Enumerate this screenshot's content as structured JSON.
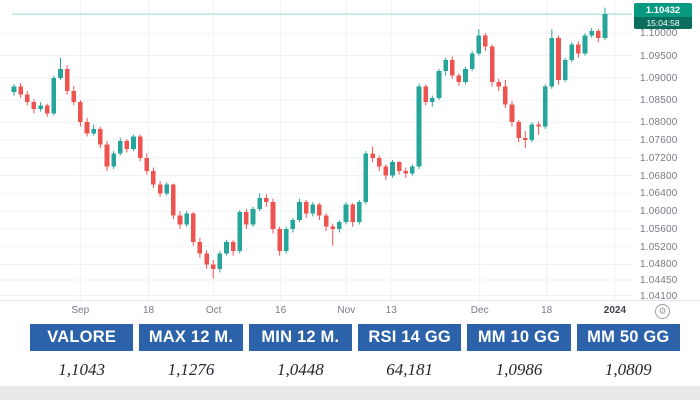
{
  "chart_data": {
    "type": "candlestick",
    "last_price_label": "1.10432",
    "countdown": "15:04:58",
    "price_scale": {
      "top": 1.1075,
      "bottom": 1.04
    },
    "y_axis_labels": [
      "1.10000",
      "1.09500",
      "1.09000",
      "1.08500",
      "1.08000",
      "1.07600",
      "1.07200",
      "1.06800",
      "1.06400",
      "1.06000",
      "1.05600",
      "1.05200",
      "1.04800",
      "1.04450",
      "1.04100"
    ],
    "x_axis_labels": [
      {
        "label": "Sep",
        "pos_pct": 12.7,
        "year": false
      },
      {
        "label": "18",
        "pos_pct": 23.5,
        "year": false
      },
      {
        "label": "Oct",
        "pos_pct": 33.8,
        "year": false
      },
      {
        "label": "16",
        "pos_pct": 44.4,
        "year": false
      },
      {
        "label": "Nov",
        "pos_pct": 54.8,
        "year": false
      },
      {
        "label": "13",
        "pos_pct": 61.9,
        "year": false
      },
      {
        "label": "Dec",
        "pos_pct": 75.9,
        "year": false
      },
      {
        "label": "18",
        "pos_pct": 86.5,
        "year": false
      },
      {
        "label": "2024",
        "pos_pct": 97.3,
        "year": true
      }
    ],
    "colors": {
      "up": "#26a69a",
      "down": "#ef5350",
      "badge": "#089981",
      "badge_dark": "#0a6e5f",
      "grid": "#f0f2f6",
      "price_line": "#26a69a",
      "axis_text": "#787b86"
    },
    "candles": [
      [
        1.0868,
        1.0886,
        1.086,
        1.088
      ],
      [
        1.088,
        1.0888,
        1.0855,
        1.0862
      ],
      [
        1.0862,
        1.087,
        1.0838,
        1.0845
      ],
      [
        1.0845,
        1.0852,
        1.082,
        1.083
      ],
      [
        1.083,
        1.0845,
        1.0824,
        1.0838
      ],
      [
        1.0838,
        1.0842,
        1.0812,
        1.082
      ],
      [
        1.082,
        1.0905,
        1.0816,
        1.09
      ],
      [
        1.09,
        1.0945,
        1.0895,
        1.092
      ],
      [
        1.092,
        1.0928,
        1.0862,
        1.087
      ],
      [
        1.087,
        1.0882,
        1.0838,
        1.0845
      ],
      [
        1.0845,
        1.085,
        1.079,
        1.08
      ],
      [
        1.08,
        1.081,
        1.0768,
        1.0775
      ],
      [
        1.0775,
        1.0795,
        1.077,
        1.0785
      ],
      [
        1.0785,
        1.079,
        1.0742,
        1.075
      ],
      [
        1.075,
        1.0758,
        1.069,
        1.07
      ],
      [
        1.07,
        1.0735,
        1.0695,
        1.073
      ],
      [
        1.073,
        1.0765,
        1.0725,
        1.0758
      ],
      [
        1.0758,
        1.0762,
        1.0732,
        1.074
      ],
      [
        1.074,
        1.0772,
        1.0735,
        1.0768
      ],
      [
        1.0768,
        1.0772,
        1.0712,
        1.072
      ],
      [
        1.072,
        1.073,
        1.0682,
        1.069
      ],
      [
        1.069,
        1.0698,
        1.0652,
        1.066
      ],
      [
        1.066,
        1.0668,
        1.0632,
        1.064
      ],
      [
        1.064,
        1.0665,
        1.0635,
        1.066
      ],
      [
        1.066,
        1.0662,
        1.0582,
        1.059
      ],
      [
        1.059,
        1.06,
        1.056,
        1.057
      ],
      [
        1.057,
        1.06,
        1.0565,
        1.0595
      ],
      [
        1.0595,
        1.0598,
        1.0522,
        1.053
      ],
      [
        1.053,
        1.054,
        1.0495,
        1.0505
      ],
      [
        1.0505,
        1.0512,
        1.047,
        1.048
      ],
      [
        1.048,
        1.049,
        1.0448,
        1.047
      ],
      [
        1.047,
        1.051,
        1.0462,
        1.0505
      ],
      [
        1.0505,
        1.0535,
        1.05,
        1.053
      ],
      [
        1.053,
        1.0535,
        1.05,
        1.051
      ],
      [
        1.051,
        1.0602,
        1.0505,
        1.0598
      ],
      [
        1.0598,
        1.0605,
        1.056,
        1.057
      ],
      [
        1.057,
        1.061,
        1.0565,
        1.0605
      ],
      [
        1.0605,
        1.064,
        1.06,
        1.063
      ],
      [
        1.063,
        1.0638,
        1.061,
        1.062
      ],
      [
        1.062,
        1.0628,
        1.055,
        1.056
      ],
      [
        1.056,
        1.0565,
        1.05,
        1.051
      ],
      [
        1.051,
        1.0565,
        1.0505,
        1.056
      ],
      [
        1.056,
        1.0585,
        1.0552,
        1.058
      ],
      [
        1.058,
        1.0628,
        1.0575,
        1.062
      ],
      [
        1.062,
        1.0625,
        1.0585,
        1.0595
      ],
      [
        1.0595,
        1.062,
        1.0588,
        1.0615
      ],
      [
        1.0615,
        1.0618,
        1.058,
        1.059
      ],
      [
        1.059,
        1.0595,
        1.0555,
        1.0565
      ],
      [
        1.0565,
        1.0572,
        1.0522,
        1.056
      ],
      [
        1.056,
        1.058,
        1.0552,
        1.0575
      ],
      [
        1.0575,
        1.062,
        1.057,
        1.0615
      ],
      [
        1.0615,
        1.0618,
        1.0565,
        1.0575
      ],
      [
        1.0575,
        1.0625,
        1.057,
        1.062
      ],
      [
        1.062,
        1.0735,
        1.0615,
        1.073
      ],
      [
        1.073,
        1.0745,
        1.071,
        1.072
      ],
      [
        1.072,
        1.0725,
        1.069,
        1.07
      ],
      [
        1.07,
        1.0705,
        1.067,
        1.068
      ],
      [
        1.068,
        1.0715,
        1.0675,
        1.071
      ],
      [
        1.071,
        1.0712,
        1.0682,
        1.069
      ],
      [
        1.069,
        1.0698,
        1.0675,
        1.0685
      ],
      [
        1.0685,
        1.0705,
        1.068,
        1.07
      ],
      [
        1.07,
        1.0887,
        1.0695,
        1.088
      ],
      [
        1.088,
        1.0885,
        1.0838,
        1.0845
      ],
      [
        1.0845,
        1.086,
        1.0835,
        1.0855
      ],
      [
        1.0855,
        1.092,
        1.085,
        1.0915
      ],
      [
        1.0915,
        1.0945,
        1.0905,
        1.094
      ],
      [
        1.094,
        1.0948,
        1.0898,
        1.0905
      ],
      [
        1.0905,
        1.091,
        1.0882,
        1.089
      ],
      [
        1.089,
        1.0925,
        1.0885,
        1.092
      ],
      [
        1.092,
        1.096,
        1.0915,
        1.0955
      ],
      [
        1.0955,
        1.1009,
        1.095,
        1.0995
      ],
      [
        1.0995,
        1.1,
        1.096,
        1.097
      ],
      [
        1.097,
        1.0975,
        1.088,
        1.089
      ],
      [
        1.089,
        1.0898,
        1.087,
        1.088
      ],
      [
        1.088,
        1.0895,
        1.0832,
        1.084
      ],
      [
        1.084,
        1.0848,
        1.079,
        1.08
      ],
      [
        1.08,
        1.0805,
        1.0755,
        1.0765
      ],
      [
        1.0765,
        1.078,
        1.0742,
        1.076
      ],
      [
        1.076,
        1.08,
        1.0755,
        1.0795
      ],
      [
        1.0795,
        1.0802,
        1.0772,
        1.079
      ],
      [
        1.079,
        1.0885,
        1.0785,
        1.088
      ],
      [
        1.088,
        1.1009,
        1.0875,
        1.099
      ],
      [
        1.099,
        1.0995,
        1.0885,
        1.0895
      ],
      [
        1.0895,
        1.0945,
        1.089,
        1.094
      ],
      [
        1.094,
        1.098,
        1.0935,
        1.0975
      ],
      [
        1.0975,
        1.0982,
        1.0945,
        1.0955
      ],
      [
        1.0955,
        1.1,
        1.095,
        1.0995
      ],
      [
        1.0995,
        1.1012,
        1.099,
        1.1005
      ],
      [
        1.1005,
        1.101,
        1.098,
        1.099
      ],
      [
        1.099,
        1.1058,
        1.0985,
        1.1043
      ]
    ]
  },
  "badge": {
    "value": "1.10432",
    "time": "15:04:58"
  },
  "axis_gear_glyph": "⚙",
  "table": {
    "columns": [
      {
        "header": "VALORE",
        "value": "1,1043"
      },
      {
        "header": "MAX 12 M.",
        "value": "1,1276"
      },
      {
        "header": "MIN 12 M.",
        "value": "1,0448"
      },
      {
        "header": "RSI 14 GG",
        "value": "64,181"
      },
      {
        "header": "MM 10 GG",
        "value": "1,0986"
      },
      {
        "header": "MM 50 GG",
        "value": "1,0809"
      }
    ]
  }
}
